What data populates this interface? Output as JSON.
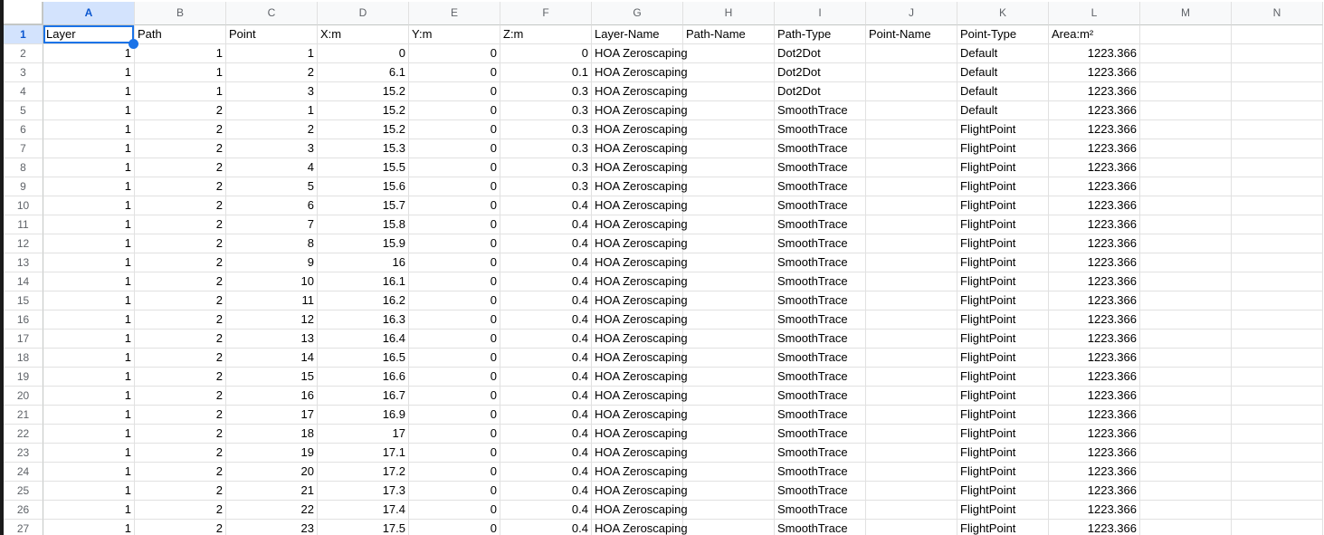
{
  "sheet": {
    "columns": [
      "A",
      "B",
      "C",
      "D",
      "E",
      "F",
      "G",
      "H",
      "I",
      "J",
      "K",
      "L",
      "M",
      "N"
    ],
    "selection": {
      "cell": "A1",
      "column": "A",
      "row": "1",
      "value": "Layer"
    },
    "header_labels": [
      "Layer",
      "Path",
      "Point",
      "X:m",
      "Y:m",
      "Z:m",
      "Layer-Name",
      "Path-Name",
      "Path-Type",
      "Point-Name",
      "Point-Type",
      "Area:m²",
      "",
      ""
    ],
    "rows": [
      {
        "n": "2",
        "c": [
          "1",
          "1",
          "1",
          "0",
          "0",
          "0",
          "HOA Zeroscaping",
          "",
          "Dot2Dot",
          "",
          "Default",
          "1223.366",
          "",
          ""
        ]
      },
      {
        "n": "3",
        "c": [
          "1",
          "1",
          "2",
          "6.1",
          "0",
          "0.1",
          "HOA Zeroscaping",
          "",
          "Dot2Dot",
          "",
          "Default",
          "1223.366",
          "",
          ""
        ]
      },
      {
        "n": "4",
        "c": [
          "1",
          "1",
          "3",
          "15.2",
          "0",
          "0.3",
          "HOA Zeroscaping",
          "",
          "Dot2Dot",
          "",
          "Default",
          "1223.366",
          "",
          ""
        ]
      },
      {
        "n": "5",
        "c": [
          "1",
          "2",
          "1",
          "15.2",
          "0",
          "0.3",
          "HOA Zeroscaping",
          "",
          "SmoothTrace",
          "",
          "Default",
          "1223.366",
          "",
          ""
        ]
      },
      {
        "n": "6",
        "c": [
          "1",
          "2",
          "2",
          "15.2",
          "0",
          "0.3",
          "HOA Zeroscaping",
          "",
          "SmoothTrace",
          "",
          "FlightPoint",
          "1223.366",
          "",
          ""
        ]
      },
      {
        "n": "7",
        "c": [
          "1",
          "2",
          "3",
          "15.3",
          "0",
          "0.3",
          "HOA Zeroscaping",
          "",
          "SmoothTrace",
          "",
          "FlightPoint",
          "1223.366",
          "",
          ""
        ]
      },
      {
        "n": "8",
        "c": [
          "1",
          "2",
          "4",
          "15.5",
          "0",
          "0.3",
          "HOA Zeroscaping",
          "",
          "SmoothTrace",
          "",
          "FlightPoint",
          "1223.366",
          "",
          ""
        ]
      },
      {
        "n": "9",
        "c": [
          "1",
          "2",
          "5",
          "15.6",
          "0",
          "0.3",
          "HOA Zeroscaping",
          "",
          "SmoothTrace",
          "",
          "FlightPoint",
          "1223.366",
          "",
          ""
        ]
      },
      {
        "n": "10",
        "c": [
          "1",
          "2",
          "6",
          "15.7",
          "0",
          "0.4",
          "HOA Zeroscaping",
          "",
          "SmoothTrace",
          "",
          "FlightPoint",
          "1223.366",
          "",
          ""
        ]
      },
      {
        "n": "11",
        "c": [
          "1",
          "2",
          "7",
          "15.8",
          "0",
          "0.4",
          "HOA Zeroscaping",
          "",
          "SmoothTrace",
          "",
          "FlightPoint",
          "1223.366",
          "",
          ""
        ]
      },
      {
        "n": "12",
        "c": [
          "1",
          "2",
          "8",
          "15.9",
          "0",
          "0.4",
          "HOA Zeroscaping",
          "",
          "SmoothTrace",
          "",
          "FlightPoint",
          "1223.366",
          "",
          ""
        ]
      },
      {
        "n": "13",
        "c": [
          "1",
          "2",
          "9",
          "16",
          "0",
          "0.4",
          "HOA Zeroscaping",
          "",
          "SmoothTrace",
          "",
          "FlightPoint",
          "1223.366",
          "",
          ""
        ]
      },
      {
        "n": "14",
        "c": [
          "1",
          "2",
          "10",
          "16.1",
          "0",
          "0.4",
          "HOA Zeroscaping",
          "",
          "SmoothTrace",
          "",
          "FlightPoint",
          "1223.366",
          "",
          ""
        ]
      },
      {
        "n": "15",
        "c": [
          "1",
          "2",
          "11",
          "16.2",
          "0",
          "0.4",
          "HOA Zeroscaping",
          "",
          "SmoothTrace",
          "",
          "FlightPoint",
          "1223.366",
          "",
          ""
        ]
      },
      {
        "n": "16",
        "c": [
          "1",
          "2",
          "12",
          "16.3",
          "0",
          "0.4",
          "HOA Zeroscaping",
          "",
          "SmoothTrace",
          "",
          "FlightPoint",
          "1223.366",
          "",
          ""
        ]
      },
      {
        "n": "17",
        "c": [
          "1",
          "2",
          "13",
          "16.4",
          "0",
          "0.4",
          "HOA Zeroscaping",
          "",
          "SmoothTrace",
          "",
          "FlightPoint",
          "1223.366",
          "",
          ""
        ]
      },
      {
        "n": "18",
        "c": [
          "1",
          "2",
          "14",
          "16.5",
          "0",
          "0.4",
          "HOA Zeroscaping",
          "",
          "SmoothTrace",
          "",
          "FlightPoint",
          "1223.366",
          "",
          ""
        ]
      },
      {
        "n": "19",
        "c": [
          "1",
          "2",
          "15",
          "16.6",
          "0",
          "0.4",
          "HOA Zeroscaping",
          "",
          "SmoothTrace",
          "",
          "FlightPoint",
          "1223.366",
          "",
          ""
        ]
      },
      {
        "n": "20",
        "c": [
          "1",
          "2",
          "16",
          "16.7",
          "0",
          "0.4",
          "HOA Zeroscaping",
          "",
          "SmoothTrace",
          "",
          "FlightPoint",
          "1223.366",
          "",
          ""
        ]
      },
      {
        "n": "21",
        "c": [
          "1",
          "2",
          "17",
          "16.9",
          "0",
          "0.4",
          "HOA Zeroscaping",
          "",
          "SmoothTrace",
          "",
          "FlightPoint",
          "1223.366",
          "",
          ""
        ]
      },
      {
        "n": "22",
        "c": [
          "1",
          "2",
          "18",
          "17",
          "0",
          "0.4",
          "HOA Zeroscaping",
          "",
          "SmoothTrace",
          "",
          "FlightPoint",
          "1223.366",
          "",
          ""
        ]
      },
      {
        "n": "23",
        "c": [
          "1",
          "2",
          "19",
          "17.1",
          "0",
          "0.4",
          "HOA Zeroscaping",
          "",
          "SmoothTrace",
          "",
          "FlightPoint",
          "1223.366",
          "",
          ""
        ]
      },
      {
        "n": "24",
        "c": [
          "1",
          "2",
          "20",
          "17.2",
          "0",
          "0.4",
          "HOA Zeroscaping",
          "",
          "SmoothTrace",
          "",
          "FlightPoint",
          "1223.366",
          "",
          ""
        ]
      },
      {
        "n": "25",
        "c": [
          "1",
          "2",
          "21",
          "17.3",
          "0",
          "0.4",
          "HOA Zeroscaping",
          "",
          "SmoothTrace",
          "",
          "FlightPoint",
          "1223.366",
          "",
          ""
        ]
      },
      {
        "n": "26",
        "c": [
          "1",
          "2",
          "22",
          "17.4",
          "0",
          "0.4",
          "HOA Zeroscaping",
          "",
          "SmoothTrace",
          "",
          "FlightPoint",
          "1223.366",
          "",
          ""
        ]
      },
      {
        "n": "27",
        "c": [
          "1",
          "2",
          "23",
          "17.5",
          "0",
          "0.4",
          "HOA Zeroscaping",
          "",
          "SmoothTrace",
          "",
          "FlightPoint",
          "1223.366",
          "",
          ""
        ]
      }
    ],
    "colors": {
      "selection_accent": "#1a73e8",
      "selected_header_bg": "#d3e3fd",
      "selected_header_text": "#0b57d0",
      "gridline": "#e1e1e1",
      "header_border": "#c4c7c5",
      "header_text": "#5f6368",
      "cell_text": "#000000"
    }
  }
}
